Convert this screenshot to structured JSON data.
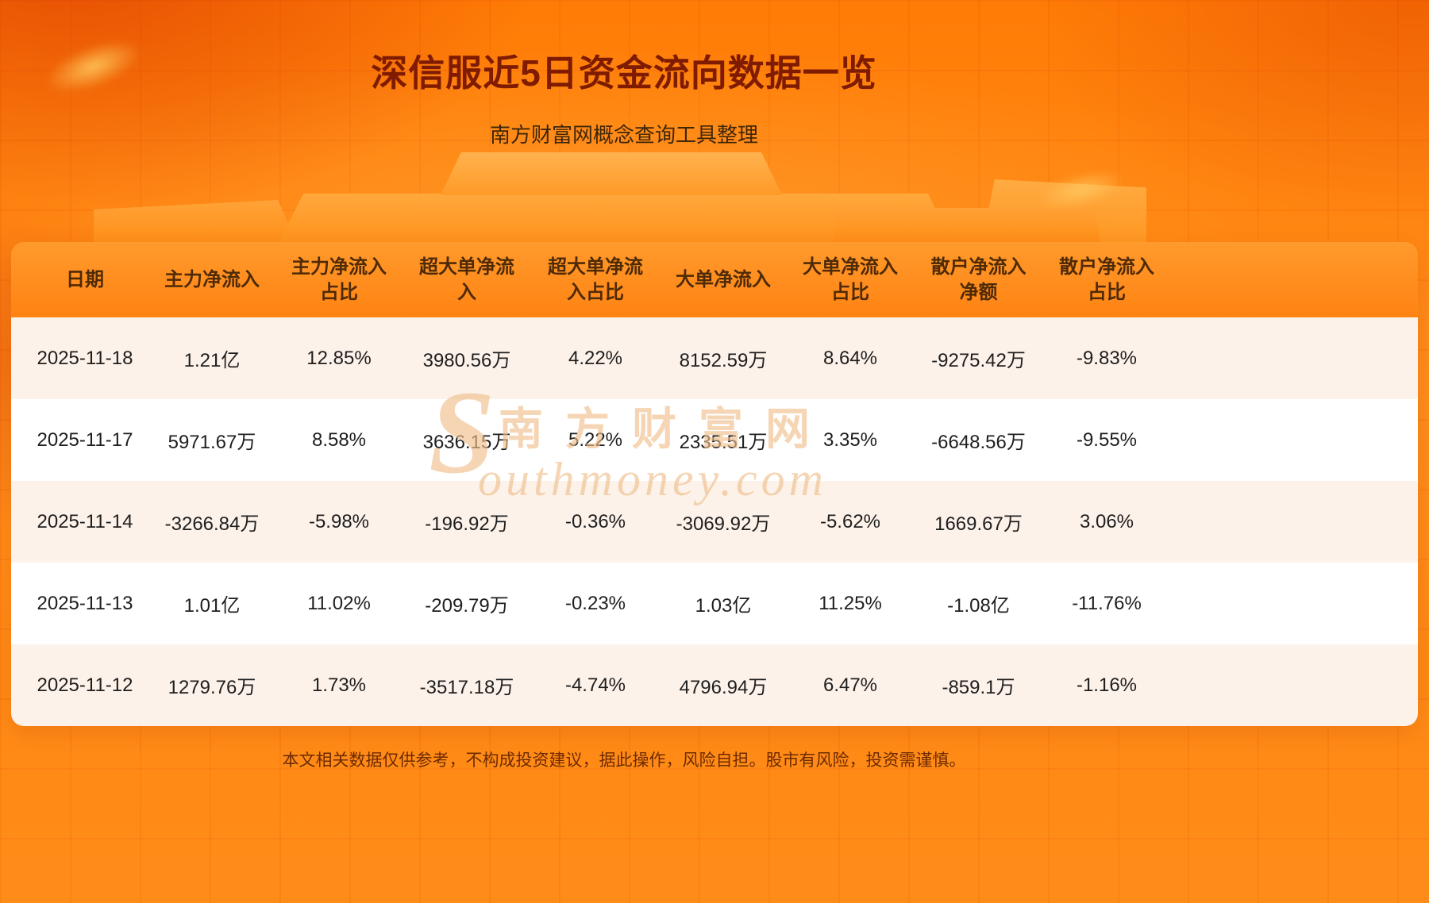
{
  "page": {
    "title": "深信服近5日资金流向数据一览",
    "subtitle": "南方财富网概念查询工具整理",
    "disclaimer": "本文相关数据仅供参考，不构成投资建议，据此操作，风险自担。股市有风险，投资需谨慎。"
  },
  "watermark": {
    "initial": "S",
    "cn": "南方财富网",
    "en": "outhmoney.com"
  },
  "chart_data": {
    "type": "table",
    "title": "深信服近5日资金流向数据一览",
    "subtitle": "南方财富网概念查询工具整理",
    "columns": [
      "日期",
      "主力净流入",
      "主力净流入占比",
      "超大单净流入",
      "超大单净流入占比",
      "大单净流入",
      "大单净流入占比",
      "散户净流入净额",
      "散户净流入占比"
    ],
    "rows": [
      [
        "2025-11-18",
        "1.21亿",
        "12.85%",
        "3980.56万",
        "4.22%",
        "8152.59万",
        "8.64%",
        "-9275.42万",
        "-9.83%"
      ],
      [
        "2025-11-17",
        "5971.67万",
        "8.58%",
        "3636.15万",
        "5.22%",
        "2335.51万",
        "3.35%",
        "-6648.56万",
        "-9.55%"
      ],
      [
        "2025-11-14",
        "-3266.84万",
        "-5.98%",
        "-196.92万",
        "-0.36%",
        "-3069.92万",
        "-5.62%",
        "1669.67万",
        "3.06%"
      ],
      [
        "2025-11-13",
        "1.01亿",
        "11.02%",
        "-209.79万",
        "-0.23%",
        "1.03亿",
        "11.25%",
        "-1.08亿",
        "-11.76%"
      ],
      [
        "2025-11-12",
        "1279.76万",
        "1.73%",
        "-3517.18万",
        "-4.74%",
        "4796.94万",
        "6.47%",
        "-859.1万",
        "-1.16%"
      ]
    ]
  },
  "colors": {
    "background_orange": "#ff8412",
    "title_text": "#7e1b00",
    "header_text": "#4f2a06",
    "row_alt": "#fdf2ea",
    "cell_text": "#1e1e1e"
  }
}
